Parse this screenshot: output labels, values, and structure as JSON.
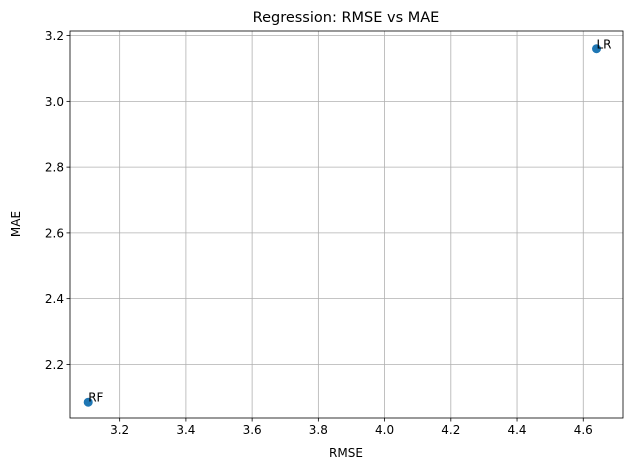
{
  "chart_data": {
    "type": "scatter",
    "title": "Regression: RMSE vs MAE",
    "xlabel": "RMSE",
    "ylabel": "MAE",
    "xlim": [
      3.05,
      4.72
    ],
    "ylim": [
      2.037,
      3.214
    ],
    "xticks": [
      3.2,
      3.4,
      3.6,
      3.8,
      4.0,
      4.2,
      4.4,
      4.6
    ],
    "xtick_labels": [
      "3.2",
      "3.4",
      "3.6",
      "3.8",
      "4.0",
      "4.2",
      "4.4",
      "4.6"
    ],
    "yticks": [
      2.2,
      2.4,
      2.6,
      2.8,
      3.0,
      3.2
    ],
    "ytick_labels": [
      "2.2",
      "2.4",
      "2.6",
      "2.8",
      "3.0",
      "3.2"
    ],
    "grid": true,
    "points": [
      {
        "label": "RF",
        "x": 3.105,
        "y": 2.085
      },
      {
        "label": "LR",
        "x": 4.64,
        "y": 3.16
      }
    ],
    "colors": {
      "marker": "#1f77b4",
      "grid": "#b0b0b0",
      "axes": "#000000"
    }
  }
}
